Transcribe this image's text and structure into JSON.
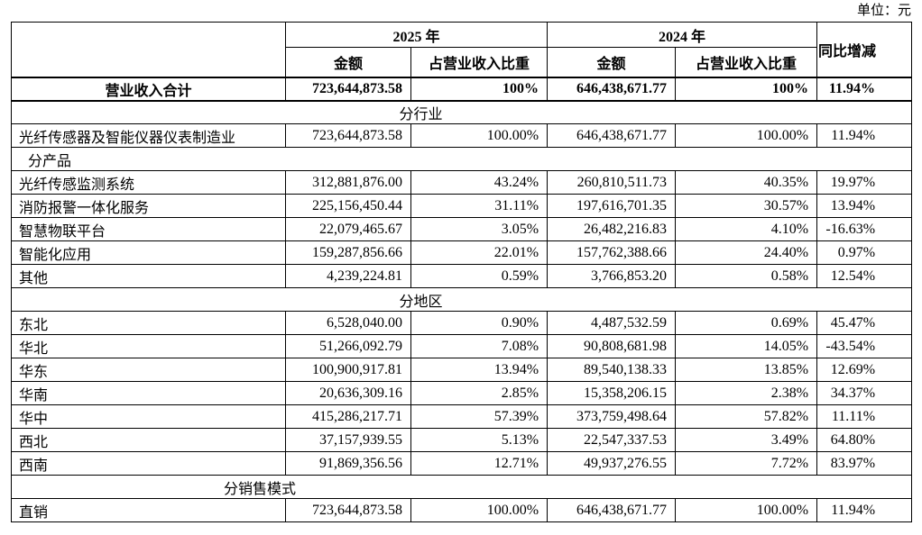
{
  "unit_label": "单位：元",
  "table": {
    "year_groups": [
      "2025 年",
      "2024 年"
    ],
    "yoy_header": "同比增减",
    "sub_headers": [
      "金额",
      "占营业收入比重",
      "金额",
      "占营业收入比重"
    ],
    "rows": [
      {
        "type": "total",
        "label": "营业收入合计",
        "values": [
          "723,644,873.58",
          "100%",
          "646,438,671.77",
          "100%",
          "11.94%"
        ]
      },
      {
        "type": "section-center",
        "label": "分行业"
      },
      {
        "type": "data",
        "label": "光纤传感器及智能仪器仪表制造业",
        "values": [
          "723,644,873.58",
          "100.00%",
          "646,438,671.77",
          "100.00%",
          "11.94%"
        ]
      },
      {
        "type": "section-left",
        "label": "分产品"
      },
      {
        "type": "data",
        "label": "光纤传感监测系统",
        "values": [
          "312,881,876.00",
          "43.24%",
          "260,810,511.73",
          "40.35%",
          "19.97%"
        ]
      },
      {
        "type": "data",
        "label": "消防报警一体化服务",
        "values": [
          "225,156,450.44",
          "31.11%",
          "197,616,701.35",
          "30.57%",
          "13.94%"
        ]
      },
      {
        "type": "data",
        "label": "智慧物联平台",
        "values": [
          "22,079,465.67",
          "3.05%",
          "26,482,216.83",
          "4.10%",
          "-16.63%"
        ]
      },
      {
        "type": "data",
        "label": "智能化应用",
        "values": [
          "159,287,856.66",
          "22.01%",
          "157,762,388.66",
          "24.40%",
          "0.97%"
        ]
      },
      {
        "type": "data",
        "label": "其他",
        "values": [
          "4,239,224.81",
          "0.59%",
          "3,766,853.20",
          "0.58%",
          "12.54%"
        ]
      },
      {
        "type": "section-center",
        "label": "分地区"
      },
      {
        "type": "data",
        "label": "东北",
        "values": [
          "6,528,040.00",
          "0.90%",
          "4,487,532.59",
          "0.69%",
          "45.47%"
        ]
      },
      {
        "type": "data",
        "label": "华北",
        "values": [
          "51,266,092.79",
          "7.08%",
          "90,808,681.98",
          "14.05%",
          "-43.54%"
        ]
      },
      {
        "type": "data",
        "label": "华东",
        "values": [
          "100,900,917.81",
          "13.94%",
          "89,540,138.33",
          "13.85%",
          "12.69%"
        ]
      },
      {
        "type": "data",
        "label": "华南",
        "values": [
          "20,636,309.16",
          "2.85%",
          "15,358,206.15",
          "2.38%",
          "34.37%"
        ]
      },
      {
        "type": "data",
        "label": "华中",
        "values": [
          "415,286,217.71",
          "57.39%",
          "373,759,498.64",
          "57.82%",
          "11.11%"
        ]
      },
      {
        "type": "data",
        "label": "西北",
        "values": [
          "37,157,939.55",
          "5.13%",
          "22,547,337.53",
          "3.49%",
          "64.80%"
        ]
      },
      {
        "type": "data",
        "label": "西南",
        "values": [
          "91,869,356.56",
          "12.71%",
          "49,937,276.55",
          "7.72%",
          "83.97%"
        ]
      },
      {
        "type": "section-indent",
        "label": "分销售模式"
      },
      {
        "type": "data",
        "label": "直销",
        "values": [
          "723,644,873.58",
          "100.00%",
          "646,438,671.77",
          "100.00%",
          "11.94%"
        ]
      }
    ]
  }
}
